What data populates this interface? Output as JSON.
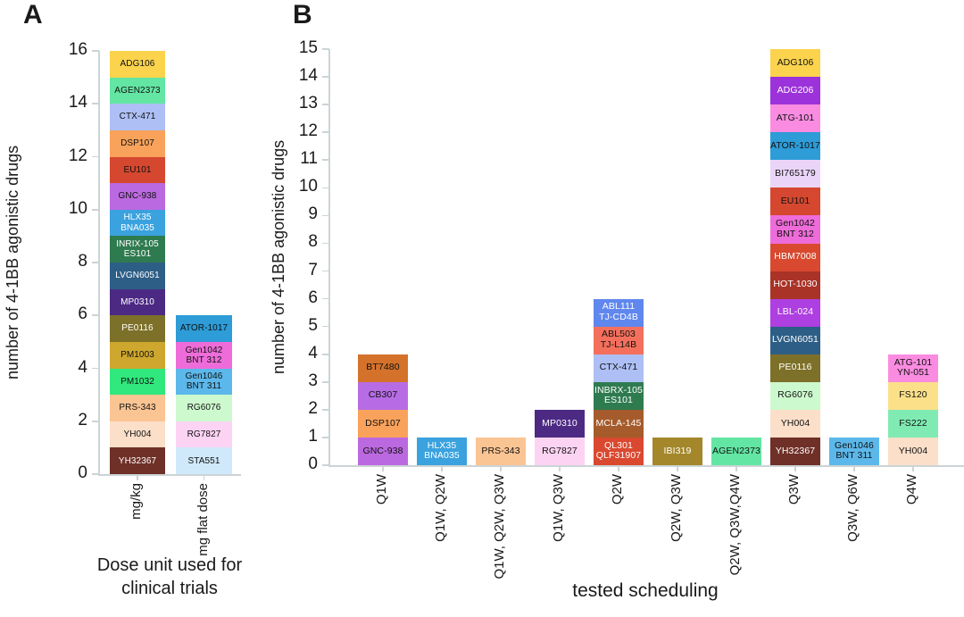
{
  "style": {
    "axis_color": "#CCD4D6",
    "text_color": "#1A1A1A",
    "background": "#FFFFFF"
  },
  "chart_data": [
    {
      "panel": "A",
      "type": "bar",
      "stacked": true,
      "title": "",
      "xlabel": "Dose unit used for\nclinical trials",
      "ylabel": "number of 4-1BB agonistic drugs",
      "ylim": [
        0,
        16
      ],
      "ytick_step": 2,
      "grid": false,
      "legend": "none - drug names printed inside segments, each segment = 1 drug",
      "categories": [
        "mg/kg",
        "mg flat dose"
      ],
      "values": [
        16,
        6
      ],
      "bars": [
        {
          "category": "mg/kg",
          "total": 16,
          "segments_bottom_to_top": [
            {
              "label": "YH32367",
              "color": "#6F3027",
              "text_color": "#FFFFFF"
            },
            {
              "label": "YH004",
              "color": "#FBDFC9",
              "text_color": "#111111"
            },
            {
              "label": "PRS-343",
              "color": "#FBC493",
              "text_color": "#111111"
            },
            {
              "label": "PM1032",
              "color": "#30E87D",
              "text_color": "#111111"
            },
            {
              "label": "PM1003",
              "color": "#CEA72E",
              "text_color": "#111111"
            },
            {
              "label": "PE0116",
              "color": "#7D7029",
              "text_color": "#FFFFFF"
            },
            {
              "label": "MP0310",
              "color": "#4C2A84",
              "text_color": "#FFFFFF"
            },
            {
              "label": "LVGN6051",
              "color": "#2D5E86",
              "text_color": "#FFFFFF"
            },
            {
              "label": "INRIX-105\nES101",
              "color": "#2F7B50",
              "text_color": "#FFFFFF"
            },
            {
              "label": "HLX35\nBNA035",
              "color": "#3AA2DE",
              "text_color": "#FFFFFF"
            },
            {
              "label": "GNC-938",
              "color": "#BB69E0",
              "text_color": "#111111"
            },
            {
              "label": "EU101",
              "color": "#D5472F",
              "text_color": "#111111"
            },
            {
              "label": "DSP107",
              "color": "#F9A25B",
              "text_color": "#111111"
            },
            {
              "label": "CTX-471",
              "color": "#ADBFF4",
              "text_color": "#111111"
            },
            {
              "label": "AGEN2373",
              "color": "#63E6A3",
              "text_color": "#111111"
            },
            {
              "label": "ADG106",
              "color": "#FBD34D",
              "text_color": "#111111"
            }
          ]
        },
        {
          "category": "mg flat dose",
          "total": 6,
          "segments_bottom_to_top": [
            {
              "label": "STA551",
              "color": "#CFE9FA",
              "text_color": "#111111"
            },
            {
              "label": "RG7827",
              "color": "#FDD3F3",
              "text_color": "#111111"
            },
            {
              "label": "RG6076",
              "color": "#CDF9CE",
              "text_color": "#111111"
            },
            {
              "label": "Gen1046\nBNT 311",
              "color": "#5CB8EA",
              "text_color": "#111111"
            },
            {
              "label": "Gen1042\nBNT 312",
              "color": "#EE6CD9",
              "text_color": "#111111"
            },
            {
              "label": "ATOR-1017",
              "color": "#2D9CD7",
              "text_color": "#111111"
            }
          ]
        }
      ]
    },
    {
      "panel": "B",
      "type": "bar",
      "stacked": true,
      "title": "",
      "xlabel": "tested scheduling",
      "ylabel": "number of 4-1BB agonistic drugs",
      "ylim": [
        0,
        15
      ],
      "ytick_step": 1,
      "grid": false,
      "legend": "none - drug names printed inside segments, each segment = 1 drug",
      "categories": [
        "Q1W",
        "Q1W, Q2W",
        "Q1W, Q2W, Q3W",
        "Q1W, Q3W",
        "Q2W",
        "Q2W, Q3W",
        "Q2W, Q3W,Q4W",
        "Q3W",
        "Q3W, Q6W",
        "Q4W"
      ],
      "values": [
        4,
        1,
        1,
        2,
        6,
        1,
        1,
        15,
        1,
        4
      ],
      "bars": [
        {
          "category": "Q1W",
          "total": 4,
          "segments_bottom_to_top": [
            {
              "label": "GNC-938",
              "color": "#BB69E0",
              "text_color": "#111111"
            },
            {
              "label": "DSP107",
              "color": "#F9A25B",
              "text_color": "#111111"
            },
            {
              "label": "CB307",
              "color": "#B76CE5",
              "text_color": "#111111"
            },
            {
              "label": "BT7480",
              "color": "#D4722B",
              "text_color": "#111111"
            }
          ]
        },
        {
          "category": "Q1W, Q2W",
          "total": 1,
          "segments_bottom_to_top": [
            {
              "label": "HLX35\nBNA035",
              "color": "#3AA2DE",
              "text_color": "#FFFFFF"
            }
          ]
        },
        {
          "category": "Q1W, Q2W, Q3W",
          "total": 1,
          "segments_bottom_to_top": [
            {
              "label": "PRS-343",
              "color": "#FBC493",
              "text_color": "#111111"
            }
          ]
        },
        {
          "category": "Q1W, Q3W",
          "total": 2,
          "segments_bottom_to_top": [
            {
              "label": "RG7827",
              "color": "#FDD3F3",
              "text_color": "#111111"
            },
            {
              "label": "MP0310",
              "color": "#4C2A84",
              "text_color": "#FFFFFF"
            }
          ]
        },
        {
          "category": "Q2W",
          "total": 6,
          "segments_bottom_to_top": [
            {
              "label": "QL301\nQLF31907",
              "color": "#D9482F",
              "text_color": "#FFFFFF"
            },
            {
              "label": "MCLA-145",
              "color": "#A55B2B",
              "text_color": "#FFFFFF"
            },
            {
              "label": "INBRX-105\nES101",
              "color": "#2F7B50",
              "text_color": "#FFFFFF"
            },
            {
              "label": "CTX-471",
              "color": "#ADBFF4",
              "text_color": "#111111"
            },
            {
              "label": "ABL503\nTJ-L14B",
              "color": "#F4705C",
              "text_color": "#111111"
            },
            {
              "label": "ABL111\nTJ-CD4B",
              "color": "#5F87EE",
              "text_color": "#FFFFFF"
            }
          ]
        },
        {
          "category": "Q2W, Q3W",
          "total": 1,
          "segments_bottom_to_top": [
            {
              "label": "IBI319",
              "color": "#A3872A",
              "text_color": "#FFFFFF"
            }
          ]
        },
        {
          "category": "Q2W, Q3W,Q4W",
          "total": 1,
          "segments_bottom_to_top": [
            {
              "label": "AGEN2373",
              "color": "#63E6A3",
              "text_color": "#111111"
            }
          ]
        },
        {
          "category": "Q3W",
          "total": 15,
          "segments_bottom_to_top": [
            {
              "label": "YH32367",
              "color": "#6F3027",
              "text_color": "#FFFFFF"
            },
            {
              "label": "YH004",
              "color": "#FBDFC9",
              "text_color": "#111111"
            },
            {
              "label": "RG6076",
              "color": "#CDF9CE",
              "text_color": "#111111"
            },
            {
              "label": "PE0116",
              "color": "#7D7029",
              "text_color": "#FFFFFF"
            },
            {
              "label": "LVGN6051",
              "color": "#2D5E86",
              "text_color": "#FFFFFF"
            },
            {
              "label": "LBL-024",
              "color": "#AE3FE0",
              "text_color": "#FFFFFF"
            },
            {
              "label": "HOT-1030",
              "color": "#A93327",
              "text_color": "#FFFFFF"
            },
            {
              "label": "HBM7008",
              "color": "#D8492F",
              "text_color": "#FFFFFF"
            },
            {
              "label": "Gen1042\nBNT 312",
              "color": "#EE6CD9",
              "text_color": "#111111"
            },
            {
              "label": "EU101",
              "color": "#D5472F",
              "text_color": "#111111"
            },
            {
              "label": "BI765179",
              "color": "#EAD5F9",
              "text_color": "#111111"
            },
            {
              "label": "ATOR-1017",
              "color": "#2D9CD7",
              "text_color": "#111111"
            },
            {
              "label": "ATG-101",
              "color": "#F98CE0",
              "text_color": "#111111"
            },
            {
              "label": "ADG206",
              "color": "#9C33DA",
              "text_color": "#FFFFFF"
            },
            {
              "label": "ADG106",
              "color": "#FBD34D",
              "text_color": "#111111"
            }
          ]
        },
        {
          "category": "Q3W, Q6W",
          "total": 1,
          "segments_bottom_to_top": [
            {
              "label": "Gen1046\nBNT 311",
              "color": "#5CB8EA",
              "text_color": "#111111"
            }
          ]
        },
        {
          "category": "Q4W",
          "total": 4,
          "segments_bottom_to_top": [
            {
              "label": "YH004",
              "color": "#FBDFC9",
              "text_color": "#111111"
            },
            {
              "label": "FS222",
              "color": "#7FEBB3",
              "text_color": "#111111"
            },
            {
              "label": "FS120",
              "color": "#FCE089",
              "text_color": "#111111"
            },
            {
              "label": "ATG-101\nYN-051",
              "color": "#F98CE0",
              "text_color": "#111111"
            }
          ]
        }
      ]
    }
  ]
}
